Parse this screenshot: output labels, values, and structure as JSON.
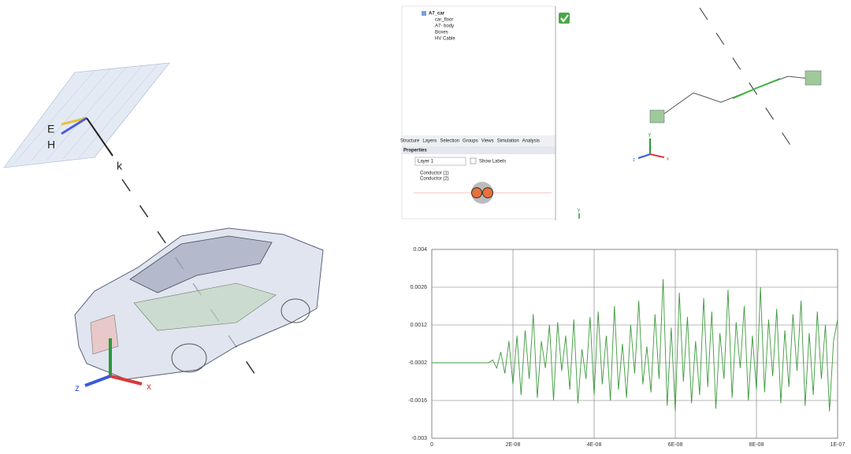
{
  "scene": {
    "field_labels": [
      "E",
      "H",
      "k"
    ],
    "axis_labels": [
      "z",
      "x"
    ]
  },
  "tree": {
    "items": [
      "A7_car",
      "car_floor",
      "A7- body",
      "Boxes",
      "HV Cable"
    ]
  },
  "tabs": [
    "Structure",
    "Layers",
    "Selection",
    "Groups",
    "Views",
    "Simulation",
    "Analysis"
  ],
  "properties": {
    "title": "Properties",
    "layer": "Layer 1",
    "show_labels": "Show Labels",
    "conductors": [
      "Conductor (1)",
      "Conductor (2)"
    ]
  },
  "viewport": {
    "axis_labels": [
      "y",
      "z",
      "x"
    ],
    "mini_axis_label": "y"
  },
  "chart_data": {
    "type": "line",
    "color": "#3c9a3c",
    "grid": true,
    "x": [
      0,
      1.4e-08,
      1.5e-08,
      1.6e-08,
      1.7e-08,
      1.8e-08,
      1.9e-08,
      2e-08,
      2.1e-08,
      2.2e-08,
      2.3e-08,
      2.4e-08,
      2.5e-08,
      2.6e-08,
      2.7e-08,
      2.8e-08,
      2.9e-08,
      3e-08,
      3.1e-08,
      3.2e-08,
      3.3e-08,
      3.4e-08,
      3.5e-08,
      3.6e-08,
      3.7e-08,
      3.8e-08,
      3.9e-08,
      4e-08,
      4.1e-08,
      4.2e-08,
      4.3e-08,
      4.4e-08,
      4.5e-08,
      4.6e-08,
      4.7e-08,
      4.8e-08,
      4.9e-08,
      5e-08,
      5.1e-08,
      5.2e-08,
      5.3e-08,
      5.4e-08,
      5.5e-08,
      5.6e-08,
      5.7e-08,
      5.8e-08,
      5.9e-08,
      6e-08,
      6.1e-08,
      6.2e-08,
      6.3e-08,
      6.4e-08,
      6.5e-08,
      6.6e-08,
      6.7e-08,
      6.8e-08,
      6.9e-08,
      7e-08,
      7.1e-08,
      7.2e-08,
      7.3e-08,
      7.4e-08,
      7.5e-08,
      7.6e-08,
      7.7e-08,
      7.8e-08,
      7.9e-08,
      8e-08,
      8.1e-08,
      8.2e-08,
      8.3e-08,
      8.4e-08,
      8.5e-08,
      8.6e-08,
      8.7e-08,
      8.8e-08,
      8.9e-08,
      9e-08,
      9.1e-08,
      9.2e-08,
      9.3e-08,
      9.4e-08,
      9.5e-08,
      9.6e-08,
      9.7e-08,
      9.8e-08,
      9.9e-08,
      1e-07
    ],
    "values": [
      -0.0002,
      -0.0002,
      -0.0001,
      -0.0004,
      0.0002,
      -0.0006,
      0.0006,
      -0.001,
      0.0008,
      -0.0014,
      0.001,
      -0.0008,
      0.0016,
      -0.0015,
      0.0006,
      -0.0004,
      0.0012,
      -0.0016,
      0.0013,
      -0.0005,
      0.0008,
      -0.0012,
      0.0014,
      -0.0017,
      0.0003,
      -0.0008,
      0.0015,
      -0.0014,
      0.0017,
      -0.001,
      0.0008,
      -0.0016,
      0.0019,
      -0.0012,
      0.0005,
      -0.0015,
      0.0012,
      -0.0006,
      0.0021,
      -0.001,
      0.0004,
      -0.0013,
      0.0016,
      -0.0008,
      0.0029,
      -0.0018,
      0.0011,
      -0.002,
      0.0024,
      -0.0009,
      0.0015,
      -0.0017,
      0.0006,
      -0.0014,
      0.0022,
      -0.0011,
      0.0017,
      -0.0019,
      0.0009,
      -0.0008,
      0.0025,
      -0.0015,
      0.0013,
      -0.0004,
      0.0019,
      -0.0016,
      0.0008,
      -0.0012,
      0.0026,
      -0.0013,
      0.0014,
      -0.0007,
      0.0018,
      -0.0017,
      0.001,
      -0.0011,
      0.0016,
      -0.0005,
      0.0021,
      -0.0018,
      0.0009,
      -0.0014,
      0.0017,
      -0.0008,
      0.0012,
      -0.002,
      0.0006,
      0.0014
    ],
    "xlim": [
      0,
      1e-07
    ],
    "ylim": [
      -0.003,
      0.004
    ],
    "xticks": [
      0,
      {
        "value": 2e-08,
        "label": "2E-08"
      },
      {
        "value": 4e-08,
        "label": "4E-08"
      },
      {
        "value": 6e-08,
        "label": "6E-08"
      },
      {
        "value": 8e-08,
        "label": "8E-08"
      },
      {
        "value": 1e-07,
        "label": "1E-07"
      }
    ],
    "yticks": [
      0.004,
      0.0026,
      0.0012,
      -0.0002,
      -0.0016,
      -0.003
    ]
  }
}
